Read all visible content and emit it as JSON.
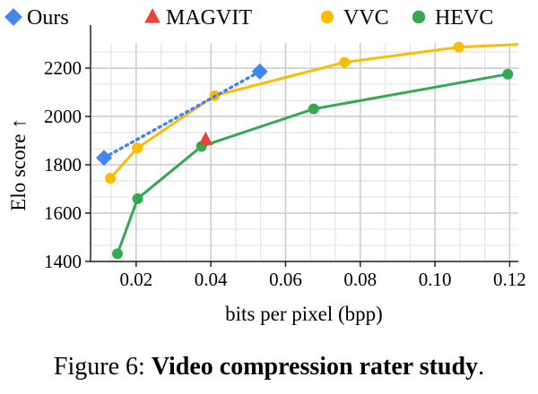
{
  "chart_data": {
    "type": "line",
    "xlabel": "bits per pixel (bpp)",
    "ylabel": "Elo score ↑",
    "xlim": [
      0.0078,
      0.1223
    ],
    "ylim": [
      1400,
      2304
    ],
    "xticks": [
      0.02,
      0.04,
      0.06,
      0.08,
      0.1,
      0.12
    ],
    "xtick_labels": [
      "0.02",
      "0.04",
      "0.06",
      "0.08",
      "0.10",
      "0.12"
    ],
    "yticks": [
      1400,
      1600,
      1800,
      2000,
      2200
    ],
    "ytick_labels": [
      "1400",
      "1600",
      "1800",
      "2000",
      "2200"
    ],
    "grid": true,
    "legend_placement": "top",
    "series": [
      {
        "name": "Ours",
        "color": "#4285F4",
        "marker": "diamond",
        "line": "dotted",
        "x": [
          0.0114,
          0.0531
        ],
        "y": [
          1829,
          2186
        ]
      },
      {
        "name": "MAGVIT",
        "color": "#EA4335",
        "marker": "triangle",
        "line": "none",
        "x": [
          0.0386
        ],
        "y": [
          1904
        ]
      },
      {
        "name": "VVC",
        "color": "#FBBC04",
        "marker": "circle",
        "line": "solid",
        "x": [
          0.0131,
          0.0203,
          0.041,
          0.0758,
          0.1064,
          0.125
        ],
        "y": [
          1744,
          1869,
          2086,
          2224,
          2287,
          2300
        ]
      },
      {
        "name": "HEVC",
        "color": "#34A853",
        "marker": "circle",
        "line": "solid",
        "x": [
          0.015,
          0.0204,
          0.0375,
          0.0675,
          0.1195
        ],
        "y": [
          1432,
          1660,
          1876,
          2031,
          2175
        ]
      }
    ]
  },
  "caption": {
    "prefix": "Figure 6: ",
    "bold": "Video compression rater study",
    "suffix": "."
  }
}
